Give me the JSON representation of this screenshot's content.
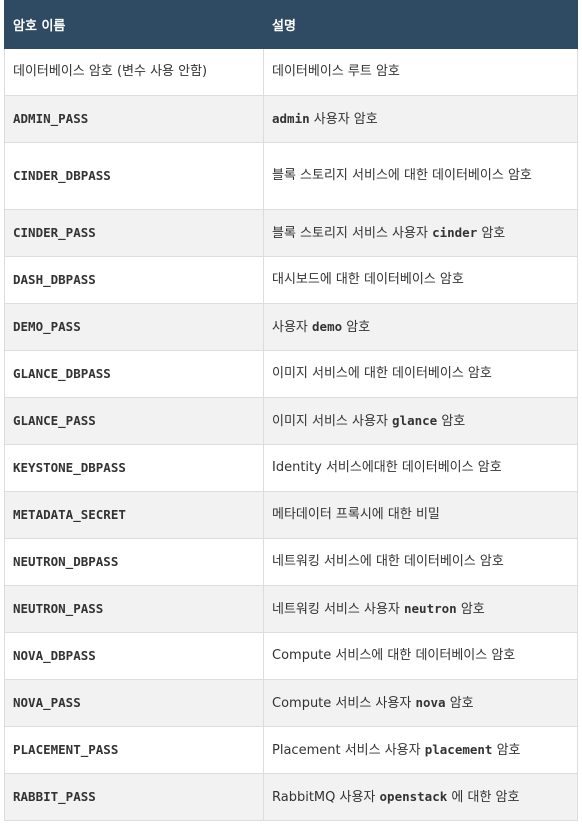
{
  "header": {
    "col1": "암호 이름",
    "col2": "설명"
  },
  "rows": [
    {
      "name": "데이터베이스 암호 (변수 사용 안함)",
      "desc": [
        "데이터베이스 루트 암호"
      ],
      "name_plain": true
    },
    {
      "name": "ADMIN_PASS",
      "desc": [
        "",
        "admin",
        " 사용자 암호"
      ]
    },
    {
      "name": "CINDER_DBPASS",
      "desc": [
        "블록 스토리지 서비스에 대한 데이터베이스 암호"
      ]
    },
    {
      "name": "CINDER_PASS",
      "desc": [
        "블록 스토리지 서비스 사용자 ",
        "cinder",
        " 암호"
      ]
    },
    {
      "name": "DASH_DBPASS",
      "desc": [
        "대시보드에 대한 데이터베이스 암호"
      ]
    },
    {
      "name": "DEMO_PASS",
      "desc": [
        "사용자 ",
        "demo",
        " 암호"
      ]
    },
    {
      "name": "GLANCE_DBPASS",
      "desc": [
        "이미지 서비스에 대한 데이터베이스 암호"
      ]
    },
    {
      "name": "GLANCE_PASS",
      "desc": [
        "이미지 서비스 사용자 ",
        "glance",
        " 암호"
      ]
    },
    {
      "name": "KEYSTONE_DBPASS",
      "desc": [
        "Identity 서비스에대한 데이터베이스 암호"
      ]
    },
    {
      "name": "METADATA_SECRET",
      "desc": [
        "메타데이터 프록시에 대한 비밀"
      ]
    },
    {
      "name": "NEUTRON_DBPASS",
      "desc": [
        "네트워킹 서비스에 대한 데이터베이스 암호"
      ]
    },
    {
      "name": "NEUTRON_PASS",
      "desc": [
        "네트워킹 서비스 사용자 ",
        "neutron",
        " 암호"
      ]
    },
    {
      "name": "NOVA_DBPASS",
      "desc": [
        "Compute 서비스에 대한 데이터베이스 암호"
      ]
    },
    {
      "name": "NOVA_PASS",
      "desc": [
        "Compute 서비스 사용자 ",
        "nova",
        " 암호"
      ]
    },
    {
      "name": "PLACEMENT_PASS",
      "desc": [
        "Placement 서비스 사용자 ",
        "placement",
        " 암호"
      ]
    },
    {
      "name": "RABBIT_PASS",
      "desc": [
        "RabbitMQ 사용자 ",
        "openstack",
        " 에 대한 암호"
      ]
    }
  ],
  "colors": {
    "header_bg": "#2e4b63",
    "header_fg": "#ffffff",
    "row_shade": "#f2f2f2",
    "border": "#dddddd"
  }
}
